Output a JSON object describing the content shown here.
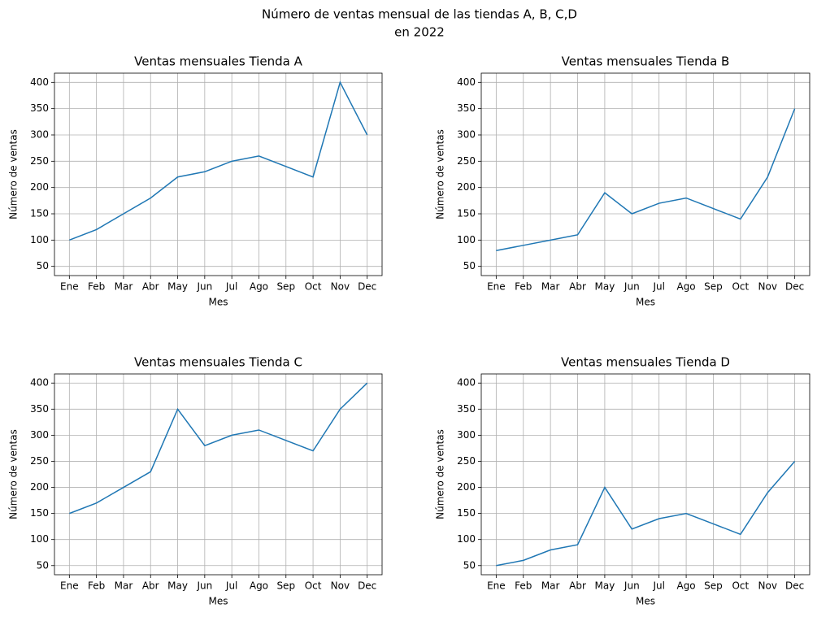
{
  "title": [
    "Número de ventas mensual de las tiendas A, B, C,D",
    "en 2022"
  ],
  "chart_data": [
    {
      "type": "line",
      "title": "Ventas mensuales Tienda A",
      "xlabel": "Mes",
      "ylabel": "Número de ventas",
      "categories": [
        "Ene",
        "Feb",
        "Mar",
        "Abr",
        "May",
        "Jun",
        "Jul",
        "Ago",
        "Sep",
        "Oct",
        "Nov",
        "Dec"
      ],
      "values": [
        100,
        120,
        150,
        180,
        220,
        230,
        250,
        260,
        240,
        220,
        400,
        300
      ],
      "color": "#1f77b4",
      "ylim": [
        32.5,
        417.5
      ],
      "yticks": [
        50,
        100,
        150,
        200,
        250,
        300,
        350,
        400
      ],
      "grid": true
    },
    {
      "type": "line",
      "title": "Ventas mensuales Tienda B",
      "xlabel": "Mes",
      "ylabel": "Número de ventas",
      "categories": [
        "Ene",
        "Feb",
        "Mar",
        "Abr",
        "May",
        "Jun",
        "Jul",
        "Ago",
        "Sep",
        "Oct",
        "Nov",
        "Dec"
      ],
      "values": [
        80,
        90,
        100,
        110,
        190,
        150,
        170,
        180,
        160,
        140,
        220,
        350
      ],
      "color": "#1f77b4",
      "ylim": [
        32.5,
        417.5
      ],
      "yticks": [
        50,
        100,
        150,
        200,
        250,
        300,
        350,
        400
      ],
      "grid": true
    },
    {
      "type": "line",
      "title": "Ventas mensuales Tienda C",
      "xlabel": "Mes",
      "ylabel": "Número de ventas",
      "categories": [
        "Ene",
        "Feb",
        "Mar",
        "Abr",
        "May",
        "Jun",
        "Jul",
        "Ago",
        "Sep",
        "Oct",
        "Nov",
        "Dec"
      ],
      "values": [
        150,
        170,
        200,
        230,
        350,
        280,
        300,
        310,
        290,
        270,
        350,
        400
      ],
      "color": "#1f77b4",
      "ylim": [
        32.5,
        417.5
      ],
      "yticks": [
        50,
        100,
        150,
        200,
        250,
        300,
        350,
        400
      ],
      "grid": true
    },
    {
      "type": "line",
      "title": "Ventas mensuales Tienda D",
      "xlabel": "Mes",
      "ylabel": "Número de ventas",
      "categories": [
        "Ene",
        "Feb",
        "Mar",
        "Abr",
        "May",
        "Jun",
        "Jul",
        "Ago",
        "Sep",
        "Oct",
        "Nov",
        "Dec"
      ],
      "values": [
        50,
        60,
        80,
        90,
        200,
        120,
        140,
        150,
        130,
        110,
        190,
        250
      ],
      "color": "#1f77b4",
      "ylim": [
        32.5,
        417.5
      ],
      "yticks": [
        50,
        100,
        150,
        200,
        250,
        300,
        350,
        400
      ],
      "grid": true
    }
  ]
}
